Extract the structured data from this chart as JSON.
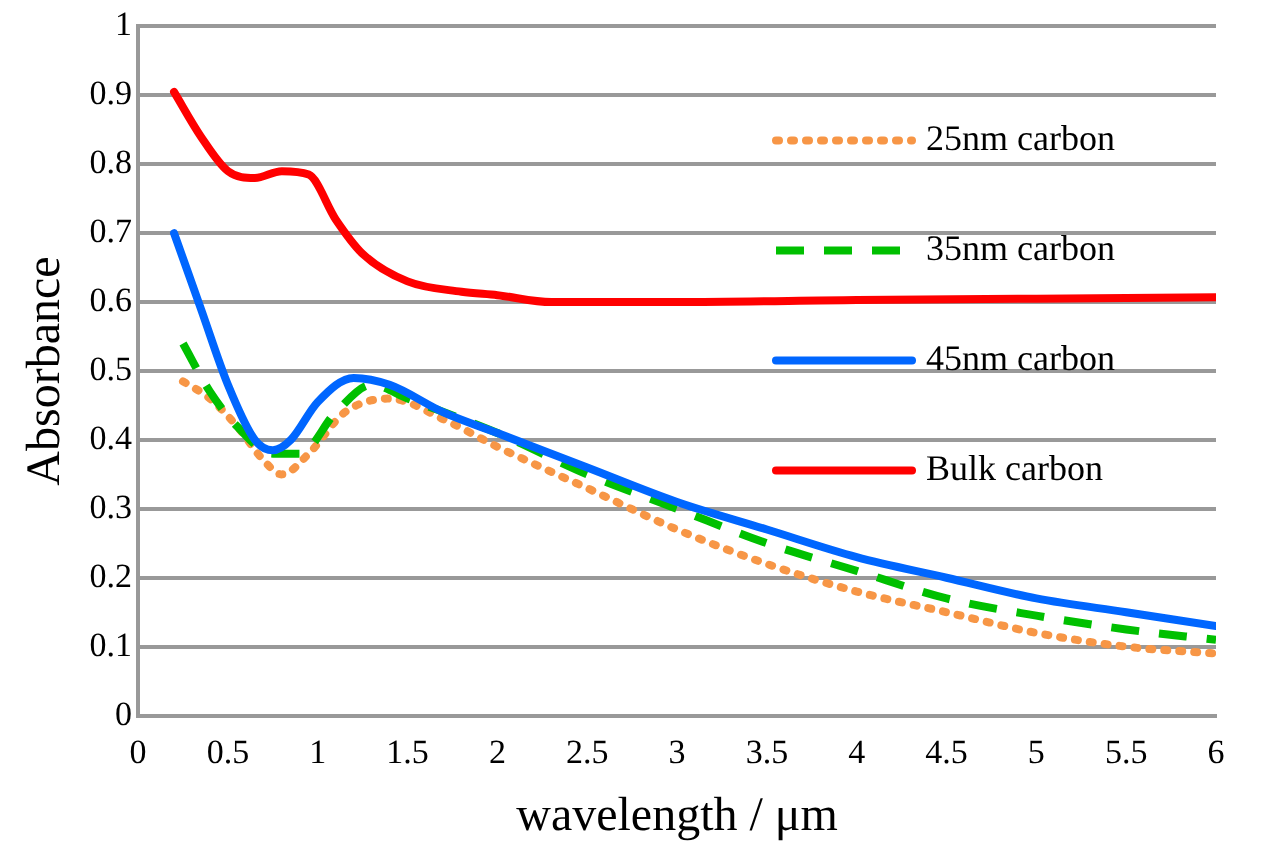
{
  "chart_data": {
    "type": "line",
    "xlabel": "wavelength / μm",
    "ylabel": "Absorbance",
    "xlim": [
      0,
      6
    ],
    "xticks": [
      0,
      0.5,
      1,
      1.5,
      2,
      2.5,
      3,
      3.5,
      4,
      4.5,
      5,
      5.5,
      6
    ],
    "ylim": [
      0,
      1
    ],
    "yticks": [
      0,
      0.1,
      0.2,
      0.3,
      0.4,
      0.5,
      0.6,
      0.7,
      0.8,
      0.9,
      1
    ],
    "grid": "y",
    "legend": "right",
    "marker": "none",
    "series": [
      {
        "name": "25nm carbon",
        "color": "#f79646",
        "line_style": "dotted",
        "x": [
          0.25,
          0.4,
          0.55,
          0.7,
          0.8,
          0.95,
          1.15,
          1.4,
          1.7,
          2,
          2.5,
          3,
          3.5,
          4,
          4.5,
          5,
          5.5,
          6
        ],
        "values": [
          0.485,
          0.46,
          0.42,
          0.37,
          0.35,
          0.38,
          0.44,
          0.46,
          0.43,
          0.39,
          0.33,
          0.27,
          0.22,
          0.18,
          0.15,
          0.12,
          0.1,
          0.09
        ]
      },
      {
        "name": "35nm carbon",
        "color": "#00c000",
        "line_style": "dashed",
        "x": [
          0.25,
          0.4,
          0.55,
          0.75,
          0.9,
          1.1,
          1.3,
          1.5,
          2,
          2.5,
          3,
          3.5,
          4,
          4.5,
          5,
          5.5,
          6
        ],
        "values": [
          0.54,
          0.47,
          0.42,
          0.38,
          0.38,
          0.44,
          0.48,
          0.46,
          0.41,
          0.35,
          0.3,
          0.25,
          0.21,
          0.17,
          0.145,
          0.125,
          0.11
        ]
      },
      {
        "name": "45nm carbon",
        "color": "#0066ff",
        "line_style": "solid",
        "x": [
          0.2,
          0.35,
          0.5,
          0.65,
          0.75,
          0.85,
          1,
          1.2,
          1.4,
          1.7,
          2,
          2.5,
          3,
          3.5,
          4,
          4.5,
          5,
          5.5,
          6
        ],
        "values": [
          0.7,
          0.59,
          0.48,
          0.4,
          0.385,
          0.4,
          0.455,
          0.49,
          0.48,
          0.44,
          0.41,
          0.36,
          0.31,
          0.27,
          0.23,
          0.2,
          0.17,
          0.15,
          0.13
        ]
      },
      {
        "name": "Bulk carbon",
        "color": "#ff0000",
        "line_style": "solid",
        "x": [
          0.2,
          0.35,
          0.5,
          0.65,
          0.8,
          0.95,
          1.1,
          1.25,
          1.5,
          1.8,
          2,
          2.3,
          3,
          4,
          5,
          6
        ],
        "values": [
          0.905,
          0.84,
          0.79,
          0.78,
          0.79,
          0.785,
          0.72,
          0.67,
          0.63,
          0.615,
          0.61,
          0.6,
          0.6,
          0.603,
          0.605,
          0.607
        ]
      }
    ]
  }
}
